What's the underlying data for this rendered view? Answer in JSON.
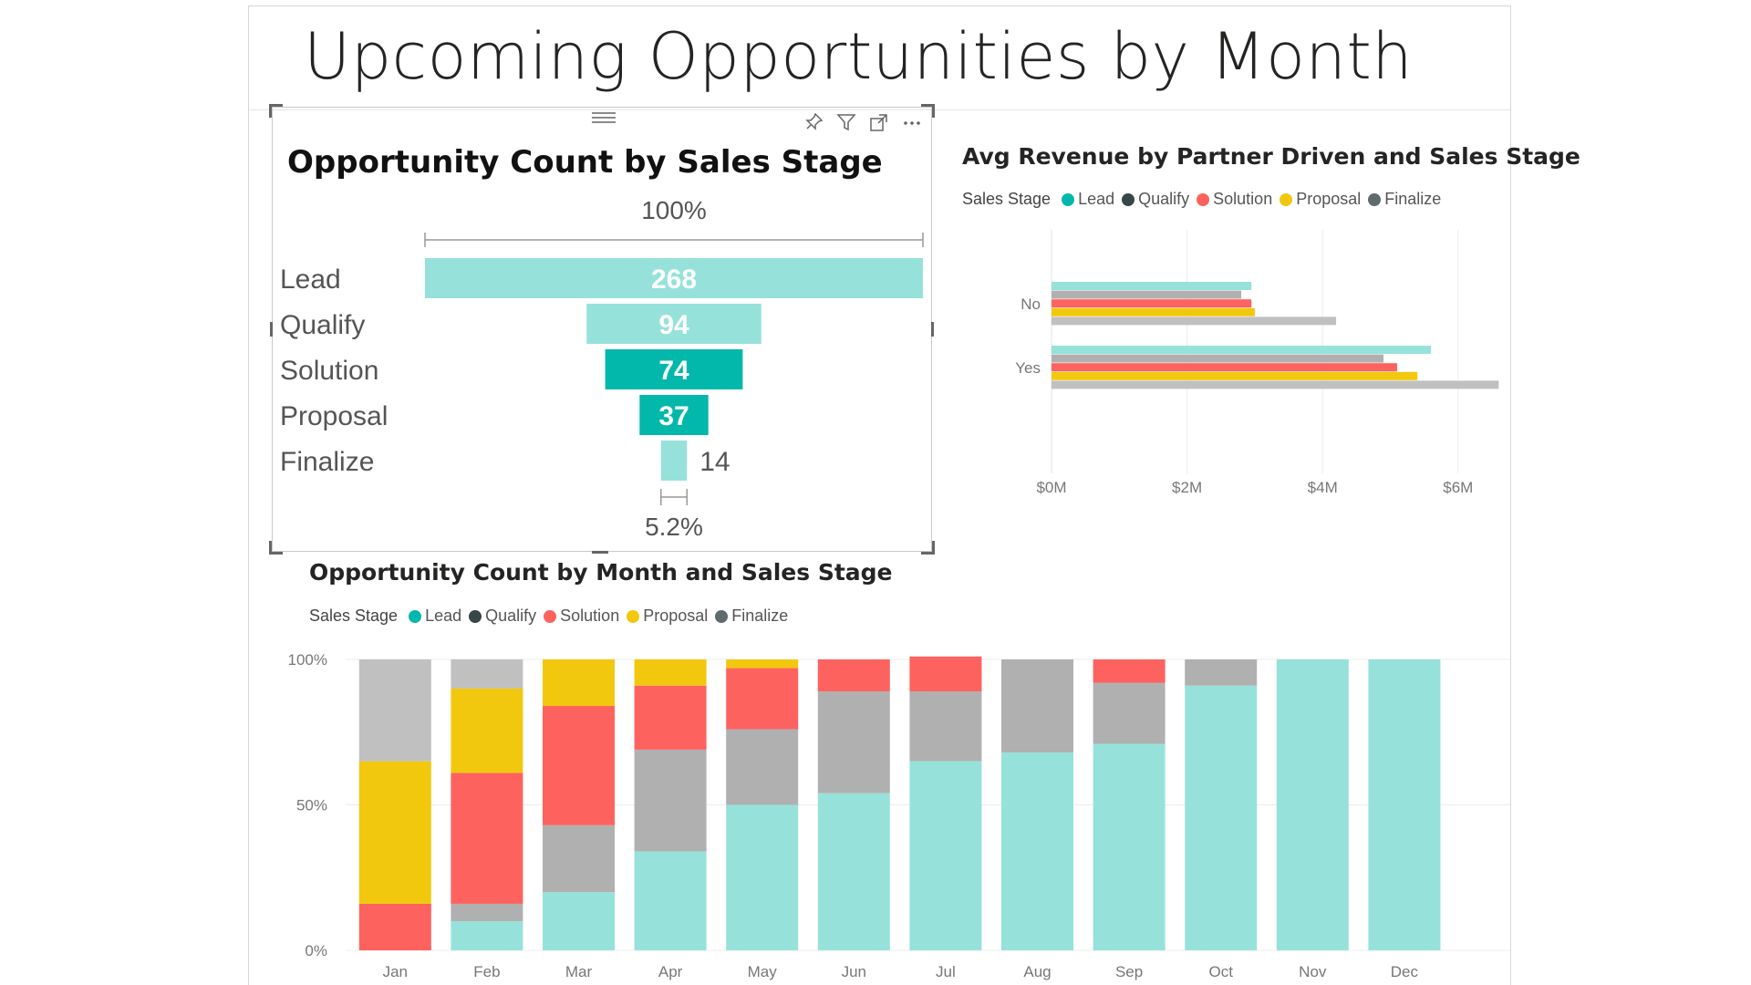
{
  "page": {
    "title": "Upcoming Opportunities by Month"
  },
  "funnel": {
    "title": "Opportunity Count by Sales Stage",
    "top_label": "100%",
    "bottom_label": "5.2%",
    "toolbar": {
      "pin_icon": "pin-icon",
      "filter_icon": "filter-icon",
      "focus_icon": "focus-mode-icon",
      "more_icon": "more-options-icon"
    }
  },
  "revenue": {
    "title": "Avg Revenue by Partner Driven and Sales Stage",
    "legend_title": "Sales Stage"
  },
  "monthly": {
    "title": "Opportunity Count by Month and Sales Stage",
    "legend_title": "Sales Stage"
  },
  "colors": {
    "Lead": "#01B8AA",
    "Qualify": "#374649",
    "Solution": "#FD625E",
    "Proposal": "#F2C80F",
    "Finalize": "#5F6B6D",
    "funnel_light": "#96E2DA",
    "funnel_dark": "#01B8AA",
    "bar_Lead": "#96E2DA",
    "bar_Qualify": "#B0B0B0",
    "bar_Solution": "#FD625E",
    "bar_Proposal": "#F2C80F",
    "bar_Finalize": "#C0C0C0"
  },
  "chart_data": [
    {
      "type": "funnel",
      "title": "Opportunity Count by Sales Stage",
      "categories": [
        "Lead",
        "Qualify",
        "Solution",
        "Proposal",
        "Finalize"
      ],
      "values": [
        268,
        94,
        74,
        37,
        14
      ],
      "highlighted": [
        "Solution",
        "Proposal"
      ],
      "top_label": "100%",
      "bottom_label": "5.2%"
    },
    {
      "type": "bar",
      "orientation": "horizontal",
      "title": "Avg Revenue by Partner Driven and Sales Stage",
      "categories": [
        "No",
        "Yes"
      ],
      "legend_title": "Sales Stage",
      "legend": [
        "Lead",
        "Qualify",
        "Solution",
        "Proposal",
        "Finalize"
      ],
      "legend_placement": "top-left",
      "series": [
        {
          "name": "Lead",
          "values": [
            2.95,
            5.6
          ]
        },
        {
          "name": "Qualify",
          "values": [
            2.8,
            4.9
          ]
        },
        {
          "name": "Solution",
          "values": [
            2.95,
            5.1
          ]
        },
        {
          "name": "Proposal",
          "values": [
            3.0,
            5.4
          ]
        },
        {
          "name": "Finalize",
          "values": [
            4.2,
            6.6
          ]
        }
      ],
      "xlim": [
        0,
        6.8
      ],
      "xticks": [
        0,
        2,
        4,
        6
      ],
      "xtick_labels": [
        "$0M",
        "$2M",
        "$4M",
        "$6M"
      ],
      "grid": true
    },
    {
      "type": "bar",
      "stacking": "percent",
      "title": "Opportunity Count by Month and Sales Stage",
      "categories": [
        "Jan",
        "Feb",
        "Mar",
        "Apr",
        "May",
        "Jun",
        "Jul",
        "Aug",
        "Sep",
        "Oct",
        "Nov",
        "Dec"
      ],
      "legend_title": "Sales Stage",
      "legend": [
        "Lead",
        "Qualify",
        "Solution",
        "Proposal",
        "Finalize"
      ],
      "legend_placement": "top-left",
      "series": [
        {
          "name": "Lead",
          "values": [
            0,
            10,
            20,
            34,
            50,
            54,
            65,
            68,
            71,
            91,
            100,
            100
          ]
        },
        {
          "name": "Qualify",
          "values": [
            0,
            6,
            23,
            35,
            26,
            35,
            24,
            32,
            21,
            9,
            0,
            0
          ]
        },
        {
          "name": "Solution",
          "values": [
            16,
            45,
            41,
            22,
            21,
            11,
            12,
            0,
            8,
            0,
            0,
            0
          ]
        },
        {
          "name": "Proposal",
          "values": [
            49,
            29,
            16,
            9,
            3,
            0,
            0,
            0,
            0,
            0,
            0,
            0
          ]
        },
        {
          "name": "Finalize",
          "values": [
            35,
            10,
            0,
            0,
            0,
            0,
            0,
            0,
            0,
            0,
            0,
            0
          ]
        }
      ],
      "ylim": [
        0,
        100
      ],
      "yticks": [
        0,
        50,
        100
      ],
      "ytick_labels": [
        "0%",
        "50%",
        "100%"
      ],
      "grid": true
    }
  ]
}
